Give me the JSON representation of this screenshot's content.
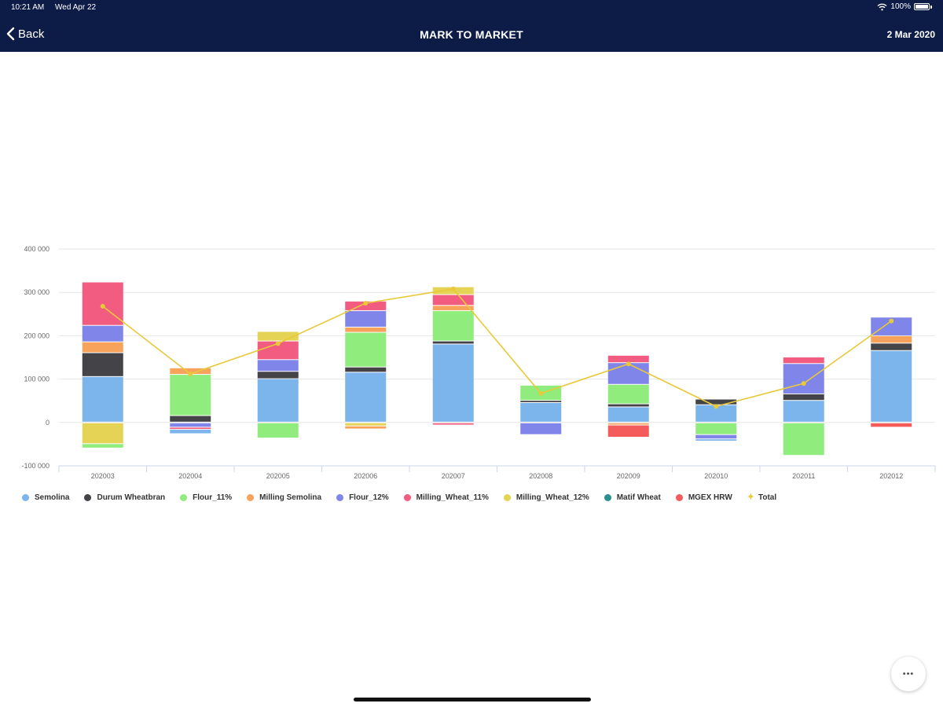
{
  "status_bar": {
    "time": "10:21 AM",
    "date": "Wed Apr 22",
    "battery": "100%"
  },
  "nav": {
    "back_label": "Back",
    "title": "MARK TO MARKET",
    "date": "2 Mar 2020"
  },
  "more_button": {
    "label": "•••"
  },
  "chart_data": {
    "type": "bar",
    "stacked": true,
    "categories": [
      "202003",
      "202004",
      "202005",
      "202006",
      "202007",
      "202008",
      "202009",
      "202010",
      "202011",
      "202012"
    ],
    "ylim": [
      -100000,
      400000
    ],
    "yticks": [
      -100000,
      0,
      100000,
      200000,
      300000,
      400000
    ],
    "ytick_labels": [
      "-100 000",
      "0",
      "100 000",
      "200 000",
      "300 000",
      "400 000"
    ],
    "series": [
      {
        "name": "Semolina",
        "color": "#7cb5ec",
        "values": [
          105000,
          0,
          100000,
          115000,
          180000,
          45000,
          35000,
          40000,
          50000,
          165000
        ]
      },
      {
        "name": "Durum Wheatbran",
        "color": "#434348",
        "values": [
          55000,
          15000,
          17000,
          12000,
          7000,
          5000,
          7000,
          13000,
          15000,
          17000
        ]
      },
      {
        "name": "Flour_11%",
        "color": "#90ed7d",
        "values": [
          0,
          95000,
          0,
          80000,
          70000,
          35000,
          45000,
          0,
          0,
          0
        ]
      },
      {
        "name": "Milling Semolina",
        "color": "#f7a35c",
        "values": [
          25000,
          15000,
          0,
          12000,
          12000,
          0,
          0,
          0,
          0,
          17000
        ]
      },
      {
        "name": "Flour_12%",
        "color": "#8085e9",
        "values": [
          38000,
          0,
          27000,
          38000,
          0,
          0,
          50000,
          0,
          70000,
          43000
        ]
      },
      {
        "name": "Milling_Wheat_11%",
        "color": "#f15c80",
        "values": [
          100000,
          0,
          43000,
          22000,
          25000,
          0,
          17000,
          0,
          15000,
          0
        ]
      },
      {
        "name": "Milling_Wheat_12%",
        "color": "#e4d354",
        "values": [
          0,
          0,
          22000,
          0,
          18000,
          0,
          0,
          0,
          0,
          0
        ]
      },
      {
        "name": "Matif Wheat",
        "color": "#2b908f",
        "values": [
          0,
          0,
          0,
          0,
          0,
          0,
          0,
          0,
          0,
          0
        ]
      },
      {
        "name": "MGEX HRW",
        "color": "#f45b5b",
        "values": [
          0,
          0,
          0,
          0,
          0,
          0,
          0,
          0,
          0,
          0
        ]
      }
    ],
    "negative_series": [
      {
        "name": "Milling_Wheat_12%",
        "color": "#e4d354",
        "values": [
          -48000,
          0,
          0,
          -7000,
          0,
          0,
          0,
          0,
          0,
          0
        ]
      },
      {
        "name": "Flour_11%",
        "color": "#90ed7d",
        "values": [
          -10000,
          0,
          -35000,
          0,
          0,
          0,
          0,
          -27000,
          -75000,
          0
        ]
      },
      {
        "name": "Flour_12%",
        "color": "#8085e9",
        "values": [
          0,
          -10000,
          0,
          0,
          0,
          -27000,
          0,
          -10000,
          0,
          0
        ]
      },
      {
        "name": "Milling_Wheat_11%",
        "color": "#f15c80",
        "values": [
          0,
          -5000,
          0,
          0,
          -5000,
          0,
          0,
          0,
          0,
          0
        ]
      },
      {
        "name": "Milling Semolina",
        "color": "#f7a35c",
        "values": [
          0,
          0,
          0,
          -7000,
          0,
          0,
          -5000,
          0,
          0,
          0
        ]
      },
      {
        "name": "Semolina",
        "color": "#7cb5ec",
        "values": [
          0,
          -10000,
          0,
          0,
          0,
          0,
          0,
          -5000,
          0,
          0
        ]
      },
      {
        "name": "MGEX HRW",
        "color": "#f45b5b",
        "values": [
          0,
          0,
          0,
          0,
          0,
          0,
          -28000,
          0,
          0,
          -10000
        ]
      }
    ],
    "total": {
      "name": "Total",
      "color": "#e8c93a",
      "values": [
        268000,
        112000,
        182000,
        275000,
        308000,
        67000,
        135000,
        37000,
        90000,
        234000
      ]
    }
  }
}
